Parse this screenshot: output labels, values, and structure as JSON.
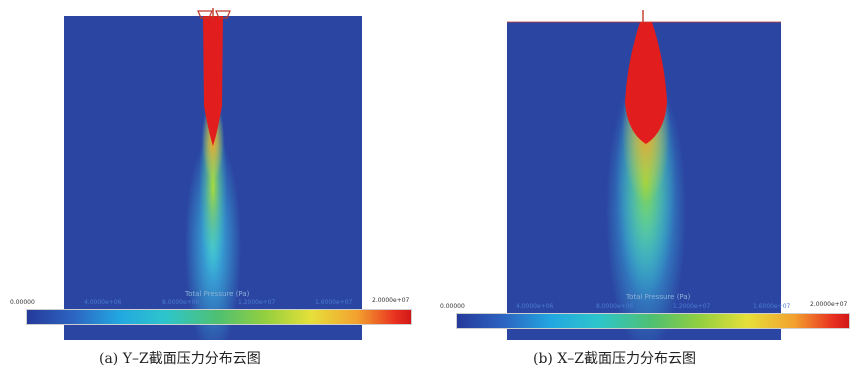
{
  "panels": [
    {
      "id": "a",
      "bar_title": "Total Pressure (Pa)",
      "ticks": [
        "0.00000",
        "4.0000e+06",
        "8.0000e+06",
        "1.2000e+07",
        "1.6000e+07",
        "2.0000e+07"
      ],
      "caption": "(a) Y–Z截面压力分布云图"
    },
    {
      "id": "b",
      "bar_title": "Total Pressure (Pa)",
      "ticks": [
        "0.00000",
        "4.0000e+06",
        "8.0000e+06",
        "1.2000e+07",
        "1.6000e+07",
        "2.0000e+07"
      ],
      "caption": "(b) X–Z截面压力分布云图"
    }
  ],
  "colors": {
    "background_field": "#2b46a2",
    "low": "#253a9a",
    "high": "#e21d1d"
  }
}
